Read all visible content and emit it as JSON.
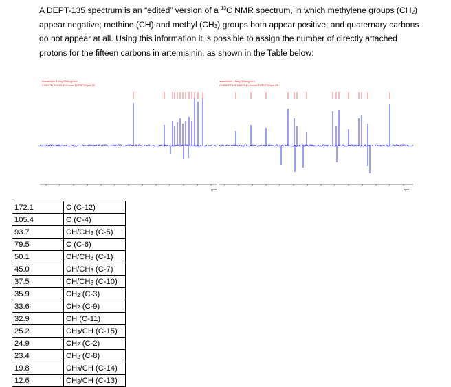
{
  "intro": {
    "part1": "A DEPT-135 spectrum is an “edited” version of a ",
    "isotope": "13",
    "part2": "C NMR spectrum, in which methylene groups (CH",
    "sub1": "2",
    "part3": ") appear negative; methine (CH) and methyl (CH",
    "sub2": "3",
    "part4": ") groups both appear positive; and quaternary carbons do not appear at all. Using this information it is possible to assign the number of directly attached protons for the fifteen carbons in artemisinin, as shown in the Table below:"
  },
  "spectrum": {
    "left_title": "artemisinin 15mg/300mg/1mL",
    "left_subtitle": "C13CPD CDCl3 {D:\\home\\TOPSPIN\\ym 25",
    "right_title": "artemisinin 15mg/300mg/1mL",
    "right_subtitle": "C13DEPT135 CDCl3 {D:\\home\\TOPSPIN\\ym 25",
    "axis_unit": "ppm",
    "colors": {
      "peaks": "#2a2aff",
      "labels": "#e02020",
      "baseline": "#2a2aff"
    }
  },
  "table": {
    "rows": [
      {
        "shift": "172.1",
        "main": "C (C-12)"
      },
      {
        "shift": "105.4",
        "main": "C (C-4)"
      },
      {
        "shift": "93.7",
        "main": "CH/CH",
        "sub": "3",
        "tail": " (C-5)"
      },
      {
        "shift": "79.5",
        "main": "C (C-6)"
      },
      {
        "shift": "50.1",
        "main": "CH/CH",
        "sub": "3",
        "tail": " (C-1)"
      },
      {
        "shift": "45.0",
        "main": "CH/CH",
        "sub": "3",
        "tail": " (C-7)"
      },
      {
        "shift": "37.5",
        "main": "CH/CH",
        "sub": "3",
        "tail": " (C-10)"
      },
      {
        "shift": "35.9",
        "main": "CH",
        "sub": "2",
        "tail": " (C-3)"
      },
      {
        "shift": "33.6",
        "main": "CH",
        "sub": "2",
        "tail": " (C-9)"
      },
      {
        "shift": "32.9",
        "main": "CH (C-11)"
      },
      {
        "shift": "25.2",
        "main": "CH",
        "sub": "3",
        "tail": "/CH (C-15)"
      },
      {
        "shift": "24.9",
        "main": "CH",
        "sub": "2",
        "tail": " (C-2)"
      },
      {
        "shift": "23.4",
        "main": "CH",
        "sub": "2",
        "tail": " (C-8)"
      },
      {
        "shift": "19.8",
        "main": "CH",
        "sub": "3",
        "tail": "/CH (C-14)"
      },
      {
        "shift": "12.6",
        "main": "CH",
        "sub": "3",
        "tail": "/CH (C-13)"
      }
    ]
  }
}
